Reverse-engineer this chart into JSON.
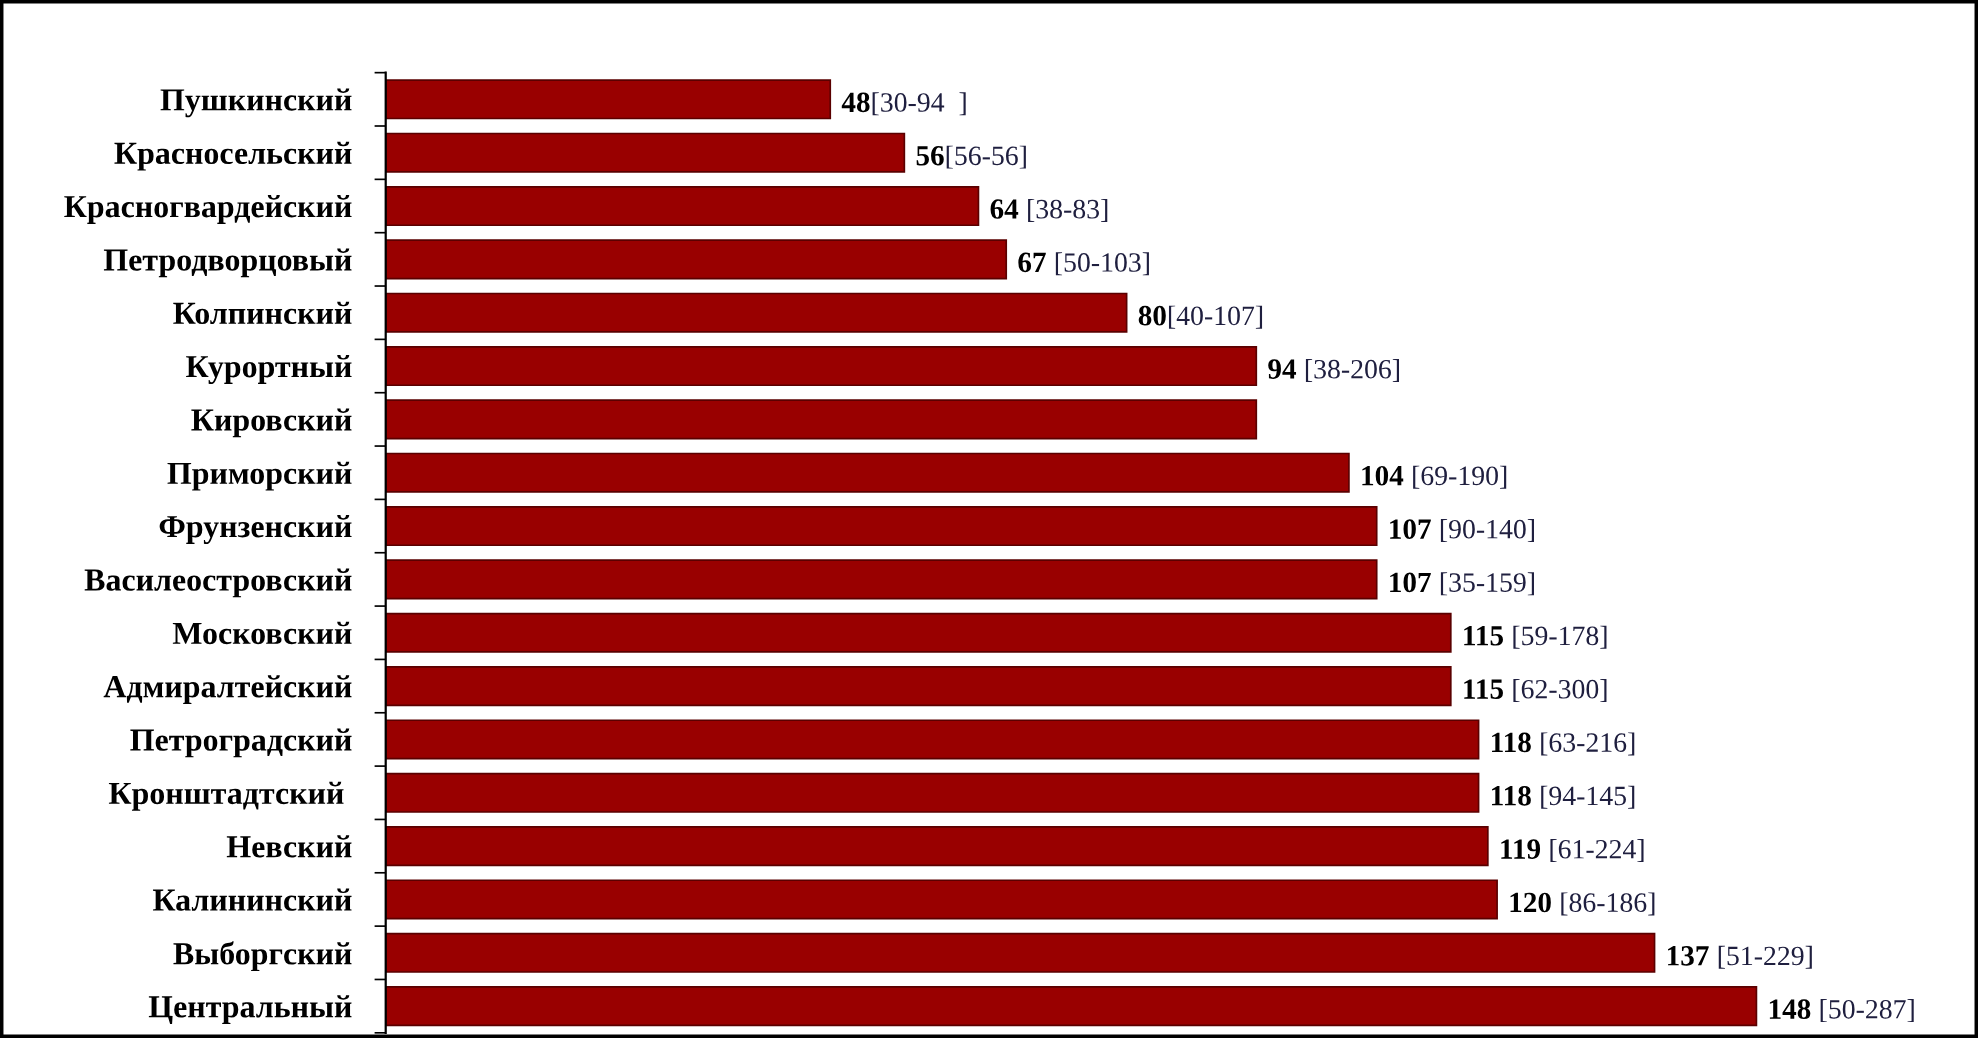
{
  "chart_data": {
    "type": "bar",
    "orientation": "horizontal",
    "categories": [
      "Пушкинский",
      "Красносельский",
      "Красногвардейский",
      "Петродворцовый",
      "Колпинский",
      "Курортный",
      "Кировский",
      "Приморский",
      "Фрунзенский",
      "Василеостровский",
      "Московский",
      "Адмиралтейский",
      "Петроградский",
      "Кронштадтский ",
      "Невский",
      "Калининский",
      "Выборгский",
      "Центральный"
    ],
    "values": [
      48,
      56,
      64,
      67,
      80,
      94,
      94,
      104,
      107,
      107,
      115,
      115,
      118,
      118,
      119,
      120,
      137,
      148
    ],
    "value_labels": [
      "48[30-94  ]",
      "56[56-56]",
      "64 [38-83]",
      "67 [50-103]",
      "80[40-107]",
      "94 [38-206]",
      null,
      "104 [69-190]",
      "107 [90-140]",
      "107 [35-159]",
      "115 [59-178]",
      "115 [62-300]",
      "118 [63-216]",
      "118 [94-145]",
      "119 [61-224]",
      "120 [86-186]",
      "137 [51-229]",
      "148 [50-287]"
    ],
    "color": "#990000",
    "tick_labels": "y",
    "grid": false,
    "legend": false
  }
}
